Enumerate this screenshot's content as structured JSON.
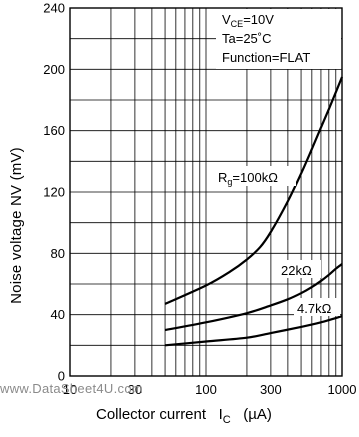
{
  "chart_data": {
    "type": "line",
    "x_scale": "log",
    "y_scale": "linear",
    "xlim": [
      10,
      1000
    ],
    "ylim": [
      0,
      240
    ],
    "x_ticks": [
      10,
      30,
      100,
      300,
      1000
    ],
    "x_tick_labels": [
      "10",
      "30",
      "100",
      "300",
      "1000"
    ],
    "y_ticks": [
      0,
      40,
      80,
      120,
      160,
      200,
      240
    ],
    "y_tick_labels": [
      "0",
      "40",
      "80",
      "120",
      "160",
      "200",
      "240"
    ],
    "grid": true,
    "xlabel": {
      "text": "Collector current",
      "symbol": "I",
      "symbol_sub": "C",
      "unit": "(µA)"
    },
    "ylabel": "Noise voltage  NV  (mV)",
    "conditions": {
      "line1": {
        "prefix": "V",
        "sub": "CE",
        "suffix": "=10V"
      },
      "line2": "Ta=25˚C",
      "line3": "Function=FLAT"
    },
    "series": [
      {
        "name_prefix": "R",
        "name_sub": "g",
        "name_suffix": "=100kΩ",
        "x": [
          50,
          100,
          150,
          200,
          250,
          300,
          400,
          500,
          600,
          700,
          800,
          900,
          1000
        ],
        "y": [
          47,
          59,
          68,
          76,
          84,
          94,
          114,
          132,
          148,
          162,
          174,
          185,
          195
        ]
      },
      {
        "name": "22kΩ",
        "x": [
          50,
          100,
          200,
          300,
          400,
          500,
          600,
          700,
          800,
          900,
          1000
        ],
        "y": [
          30,
          35,
          41,
          46,
          50,
          54,
          58,
          62,
          66,
          70,
          73
        ]
      },
      {
        "name": "4.7kΩ",
        "x": [
          50,
          100,
          200,
          300,
          500,
          700,
          1000
        ],
        "y": [
          20,
          22.5,
          25,
          28,
          32,
          35,
          39
        ]
      }
    ]
  },
  "watermark": "www.DataSheet4U.com"
}
